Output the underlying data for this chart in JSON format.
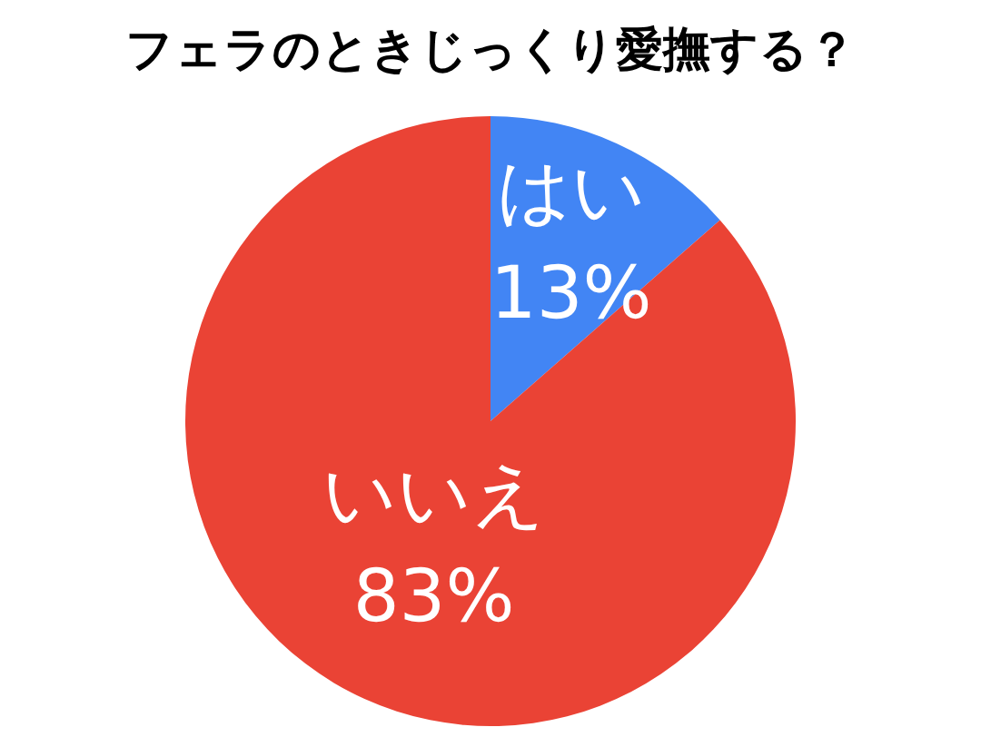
{
  "chart_data": {
    "type": "pie",
    "title": "フェラのときじっくり愛撫する？",
    "categories": [
      "はい",
      "いいえ"
    ],
    "values": [
      13,
      83
    ],
    "colors": [
      "#4285f4",
      "#ea4335"
    ],
    "value_labels": [
      "13%",
      "83%"
    ]
  }
}
